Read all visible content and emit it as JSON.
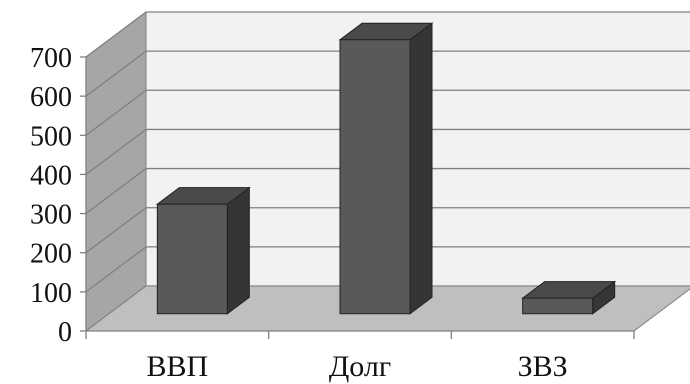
{
  "chart_data": {
    "type": "bar",
    "title": "",
    "xlabel": "",
    "ylabel": "",
    "categories": [
      "ВВП",
      "Долг",
      "ЗВЗ"
    ],
    "values": [
      280,
      700,
      40
    ],
    "ylim": [
      0,
      700
    ],
    "yticks": [
      0,
      100,
      200,
      300,
      400,
      500,
      600,
      700
    ],
    "grid": true,
    "legend": "none",
    "colors": {
      "bar_front": "#595959",
      "bar_side": "#353535",
      "bar_top": "#4a4a4a",
      "back_wall": "#f2f2f2",
      "side_wall": "#a6a6a6",
      "floor": "#bfbfbf",
      "grid": "#808080"
    }
  }
}
